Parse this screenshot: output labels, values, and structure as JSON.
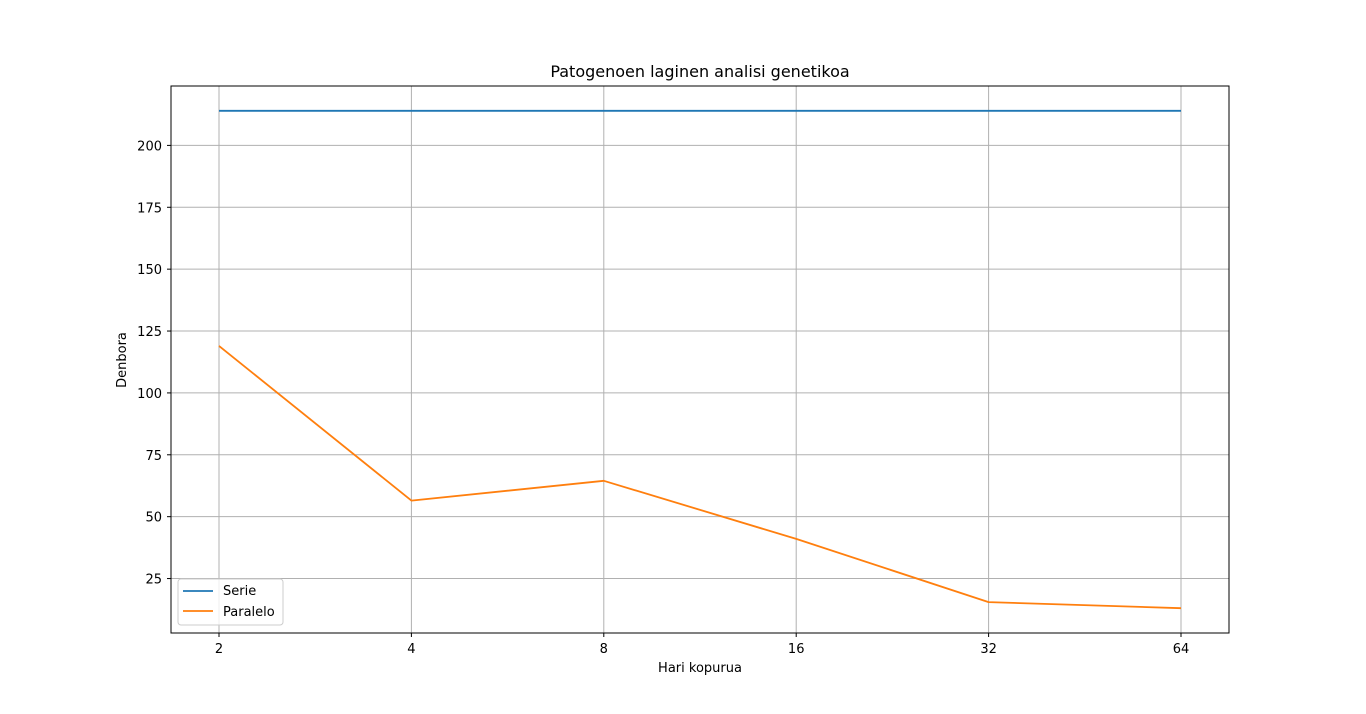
{
  "chart_data": {
    "type": "line",
    "title": "Patogenoen laginen analisi genetikoa",
    "xlabel": "Hari kopurua",
    "ylabel": "Denbora",
    "x": [
      2,
      4,
      8,
      16,
      32,
      64
    ],
    "x_tick_labels": [
      "2",
      "4",
      "8",
      "16",
      "32",
      "64"
    ],
    "x_scale": "log2",
    "y_ticks": [
      25,
      50,
      75,
      100,
      125,
      150,
      175,
      200
    ],
    "y_tick_labels": [
      "25",
      "50",
      "75",
      "100",
      "125",
      "150",
      "175",
      "200"
    ],
    "ylim": [
      3,
      224
    ],
    "grid": true,
    "legend_position": "lower-left",
    "series": [
      {
        "name": "Serie",
        "color": "#1f77b4",
        "values": [
          214,
          214,
          214,
          214,
          214,
          214
        ]
      },
      {
        "name": "Paralelo",
        "color": "#ff7f0e",
        "values": [
          119,
          56.5,
          64.5,
          41,
          15.5,
          13
        ]
      }
    ]
  }
}
